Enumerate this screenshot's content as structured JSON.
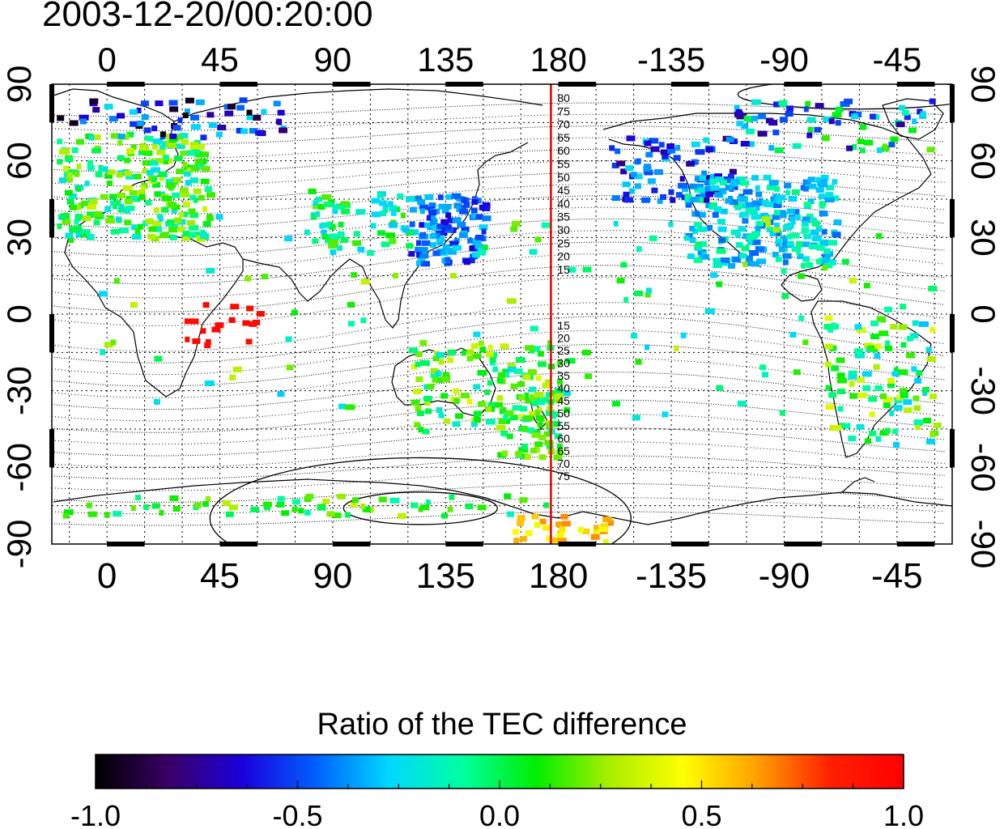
{
  "title": "2003-12-20/00:20:00",
  "map": {
    "lon_ticks_top": [
      "0",
      "45",
      "90",
      "135",
      "180",
      "-135",
      "-90",
      "-45"
    ],
    "lon_ticks_bottom": [
      "0",
      "45",
      "90",
      "135",
      "180",
      "-135",
      "-90",
      "-45"
    ],
    "lat_ticks_left": [
      "90",
      "60",
      "30",
      "0",
      "-30",
      "-60",
      "-90"
    ],
    "lat_ticks_right": [
      "90",
      "60",
      "30",
      "0",
      "-30",
      "-60",
      "-90"
    ],
    "lon_range": [
      -22,
      337
    ],
    "lat_range": [
      -90,
      90
    ],
    "grid": "on (dotted, 15 degree spacing)",
    "marker_line": {
      "longitude": 177,
      "color": "#dd0000"
    },
    "contour_labels_north": [
      "80",
      "75",
      "70",
      "65",
      "60",
      "55",
      "50",
      "45",
      "40",
      "35",
      "30",
      "25",
      "20",
      "15"
    ],
    "contour_labels_south": [
      "15",
      "20",
      "25",
      "30",
      "35",
      "40",
      "45",
      "50",
      "55",
      "60",
      "65",
      "70",
      "75"
    ]
  },
  "colorbar": {
    "title": "Ratio of the TEC difference",
    "min": -1.0,
    "max": 1.0,
    "tick_labels": [
      "-1.0",
      "-0.5",
      "0.0",
      "0.5",
      "1.0"
    ],
    "colors": [
      "#000000",
      "#3a0066",
      "#1a00dd",
      "#0060ff",
      "#00d8ff",
      "#00ffa0",
      "#00ee00",
      "#aaee00",
      "#ffff00",
      "#ffa000",
      "#ff2000",
      "#ff0000"
    ]
  }
}
